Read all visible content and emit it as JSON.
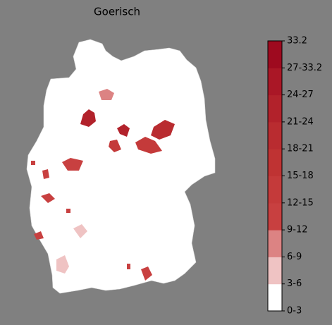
{
  "title": "Goerisch",
  "colorbar": {
    "labels": [
      "0-3",
      "3-6",
      "6-9",
      "9-12",
      "12-15",
      "15-18",
      "18-21",
      "21-24",
      "24-27",
      "27-33.2",
      "33.2"
    ],
    "colors": [
      "#ffffff",
      "#efc3c3",
      "#dc8383",
      "#c84040",
      "#c43a3a",
      "#bf3333",
      "#b92c30",
      "#b2222b",
      "#aa1726",
      "#9e0a1f"
    ]
  }
}
